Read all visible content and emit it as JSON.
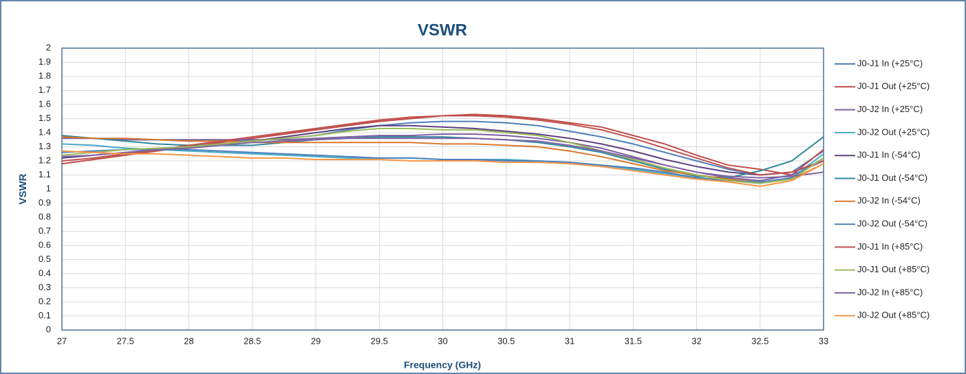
{
  "chart_data": {
    "type": "line",
    "title": "VSWR",
    "x_label": "Frequency (GHz)",
    "y_label": "VSWR",
    "x": [
      27,
      27.25,
      27.5,
      27.75,
      28,
      28.25,
      28.5,
      28.75,
      29,
      29.25,
      29.5,
      29.75,
      30,
      30.25,
      30.5,
      30.75,
      31,
      31.25,
      31.5,
      31.75,
      32,
      32.25,
      32.5,
      32.75,
      33
    ],
    "xlim": [
      27,
      33
    ],
    "xticks": [
      27,
      27.5,
      28,
      28.5,
      29,
      29.5,
      30,
      30.5,
      31,
      31.5,
      32,
      32.5,
      33
    ],
    "ylim": [
      0,
      2
    ],
    "yticks": [
      0,
      0.1,
      0.2,
      0.3,
      0.4,
      0.5,
      0.6,
      0.7,
      0.8,
      0.9,
      1,
      1.1,
      1.2,
      1.3,
      1.4,
      1.5,
      1.6,
      1.7,
      1.8,
      1.9,
      2
    ],
    "grid": true,
    "legend": "right",
    "series": [
      {
        "name": "J0-J1 In (+25°C)",
        "color": "#4a7ebb",
        "values": [
          1.37,
          1.36,
          1.35,
          1.35,
          1.34,
          1.34,
          1.34,
          1.36,
          1.38,
          1.42,
          1.45,
          1.47,
          1.48,
          1.48,
          1.47,
          1.45,
          1.41,
          1.37,
          1.32,
          1.26,
          1.2,
          1.14,
          1.1,
          1.12,
          1.27
        ]
      },
      {
        "name": "J0-J1 Out (+25°C)",
        "color": "#be4b48",
        "values": [
          1.18,
          1.21,
          1.24,
          1.27,
          1.3,
          1.33,
          1.36,
          1.39,
          1.42,
          1.45,
          1.48,
          1.5,
          1.52,
          1.53,
          1.52,
          1.5,
          1.47,
          1.44,
          1.38,
          1.32,
          1.24,
          1.17,
          1.14,
          1.1,
          1.28
        ]
      },
      {
        "name": "J0-J2 In (+25°C)",
        "color": "#7d60a0",
        "values": [
          1.36,
          1.36,
          1.35,
          1.35,
          1.35,
          1.35,
          1.35,
          1.35,
          1.36,
          1.37,
          1.38,
          1.38,
          1.39,
          1.39,
          1.38,
          1.36,
          1.33,
          1.29,
          1.23,
          1.17,
          1.12,
          1.08,
          1.06,
          1.1,
          1.2
        ]
      },
      {
        "name": "J0-J2 Out (+25°C)",
        "color": "#46aac4",
        "values": [
          1.32,
          1.31,
          1.29,
          1.28,
          1.27,
          1.26,
          1.25,
          1.24,
          1.23,
          1.22,
          1.22,
          1.22,
          1.21,
          1.21,
          1.21,
          1.2,
          1.19,
          1.17,
          1.14,
          1.11,
          1.08,
          1.06,
          1.04,
          1.08,
          1.25
        ]
      },
      {
        "name": "J0-J1 In (-54°C)",
        "color": "#5c4080",
        "values": [
          1.22,
          1.24,
          1.26,
          1.28,
          1.3,
          1.32,
          1.34,
          1.37,
          1.4,
          1.43,
          1.45,
          1.45,
          1.44,
          1.43,
          1.41,
          1.39,
          1.36,
          1.32,
          1.27,
          1.21,
          1.16,
          1.12,
          1.1,
          1.12,
          1.2
        ]
      },
      {
        "name": "J0-J1 Out (-54°C)",
        "color": "#31859c",
        "values": [
          1.38,
          1.36,
          1.34,
          1.32,
          1.31,
          1.31,
          1.31,
          1.33,
          1.35,
          1.36,
          1.37,
          1.37,
          1.37,
          1.36,
          1.35,
          1.33,
          1.3,
          1.26,
          1.2,
          1.14,
          1.09,
          1.08,
          1.13,
          1.2,
          1.37
        ]
      },
      {
        "name": "J0-J2 In (-54°C)",
        "color": "#d9782b",
        "values": [
          1.37,
          1.36,
          1.36,
          1.35,
          1.34,
          1.34,
          1.33,
          1.33,
          1.33,
          1.33,
          1.33,
          1.33,
          1.32,
          1.32,
          1.31,
          1.3,
          1.27,
          1.23,
          1.18,
          1.13,
          1.1,
          1.07,
          1.05,
          1.07,
          1.18
        ]
      },
      {
        "name": "J0-J2 Out (-54°C)",
        "color": "#4f81bd",
        "values": [
          1.26,
          1.27,
          1.28,
          1.28,
          1.28,
          1.27,
          1.26,
          1.25,
          1.24,
          1.23,
          1.22,
          1.22,
          1.21,
          1.21,
          1.2,
          1.2,
          1.19,
          1.17,
          1.15,
          1.12,
          1.08,
          1.06,
          1.05,
          1.08,
          1.22
        ]
      },
      {
        "name": "J0-J1 In (+85°C)",
        "color": "#c0504d",
        "values": [
          1.2,
          1.22,
          1.25,
          1.28,
          1.31,
          1.34,
          1.37,
          1.4,
          1.43,
          1.46,
          1.49,
          1.51,
          1.52,
          1.52,
          1.51,
          1.49,
          1.46,
          1.42,
          1.36,
          1.29,
          1.22,
          1.15,
          1.1,
          1.12,
          1.2
        ]
      },
      {
        "name": "J0-J1 Out (+85°C)",
        "color": "#9bbb59",
        "values": [
          1.24,
          1.26,
          1.28,
          1.29,
          1.3,
          1.32,
          1.34,
          1.36,
          1.38,
          1.41,
          1.43,
          1.43,
          1.42,
          1.42,
          1.4,
          1.38,
          1.33,
          1.27,
          1.21,
          1.15,
          1.1,
          1.06,
          1.04,
          1.07,
          1.22
        ]
      },
      {
        "name": "J0-J2 In (+85°C)",
        "color": "#8064a2",
        "values": [
          1.23,
          1.24,
          1.26,
          1.28,
          1.29,
          1.31,
          1.33,
          1.34,
          1.35,
          1.36,
          1.36,
          1.36,
          1.36,
          1.36,
          1.35,
          1.34,
          1.31,
          1.27,
          1.22,
          1.17,
          1.12,
          1.09,
          1.08,
          1.09,
          1.12
        ]
      },
      {
        "name": "J0-J2 Out (+85°C)",
        "color": "#f79646",
        "values": [
          1.27,
          1.26,
          1.25,
          1.25,
          1.24,
          1.23,
          1.22,
          1.22,
          1.21,
          1.21,
          1.21,
          1.2,
          1.2,
          1.2,
          1.19,
          1.19,
          1.18,
          1.16,
          1.13,
          1.1,
          1.07,
          1.05,
          1.02,
          1.06,
          1.18
        ]
      }
    ]
  }
}
